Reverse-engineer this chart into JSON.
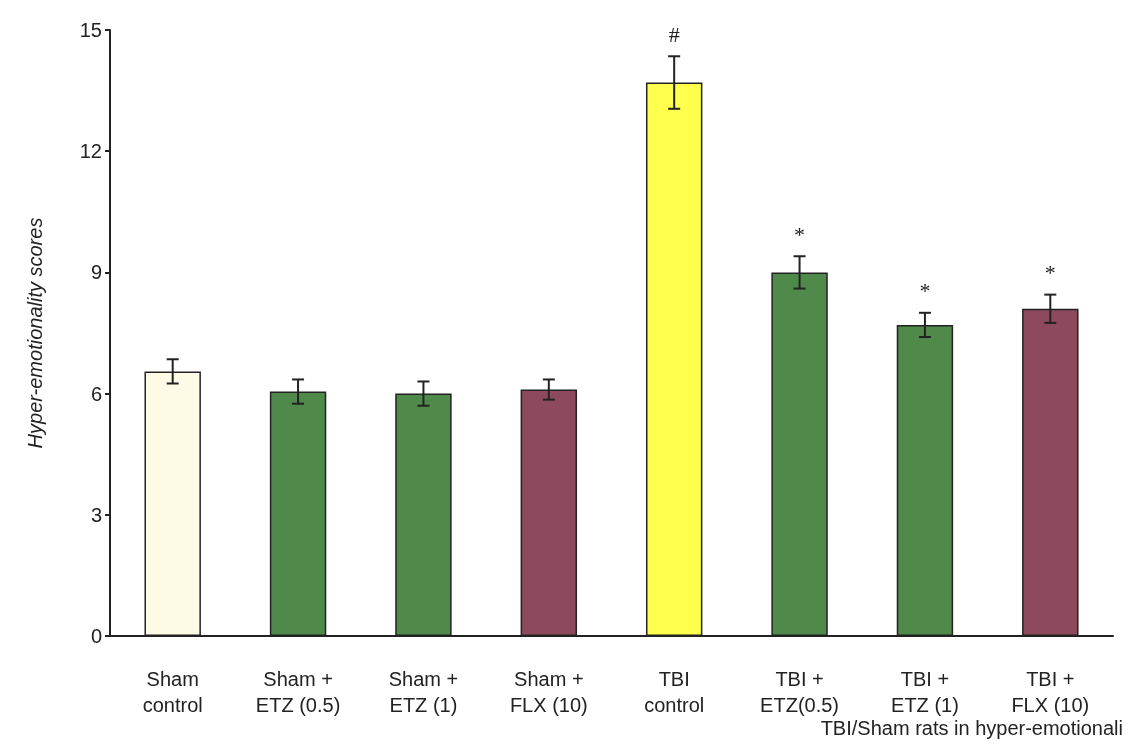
{
  "chart_data": {
    "type": "bar",
    "ylabel": "Hyper-emotionality scores",
    "categories": [
      "Sham\ncontrol",
      "Sham +\nETZ (0.5)",
      "Sham +\nETZ (1)",
      "Sham +\nFLX (10)",
      "TBI\ncontrol",
      "TBI +\nETZ(0.5)",
      "TBI +\nETZ (1)",
      "TBI +\nFLX (10)"
    ],
    "values": [
      6.55,
      6.05,
      6.0,
      6.1,
      13.7,
      9.0,
      7.7,
      8.1
    ],
    "errors": [
      0.3,
      0.3,
      0.3,
      0.25,
      0.65,
      0.4,
      0.3,
      0.35
    ],
    "colors": [
      "#fdfbe6",
      "#4f8a4a",
      "#4f8a4a",
      "#8c4a5c",
      "#ffff4d",
      "#4f8a4a",
      "#4f8a4a",
      "#8c4a5c"
    ],
    "ylim": [
      0,
      15
    ],
    "yticks": [
      0,
      3,
      6,
      9,
      12,
      15
    ],
    "grid": false,
    "annotations": [
      {
        "text": "#",
        "x": "TBI\ncontrol",
        "y": 13.7
      },
      {
        "text": "*",
        "x": "TBI +\nETZ(0.5)",
        "y": 9.0
      },
      {
        "text": "*",
        "x": "TBI +\nETZ (1)",
        "y": 7.7
      },
      {
        "text": "*",
        "x": "TBI +\nFLX (10)",
        "y": 8.1
      },
      "TBI/Sham rats in hyper-emotionali"
    ]
  }
}
